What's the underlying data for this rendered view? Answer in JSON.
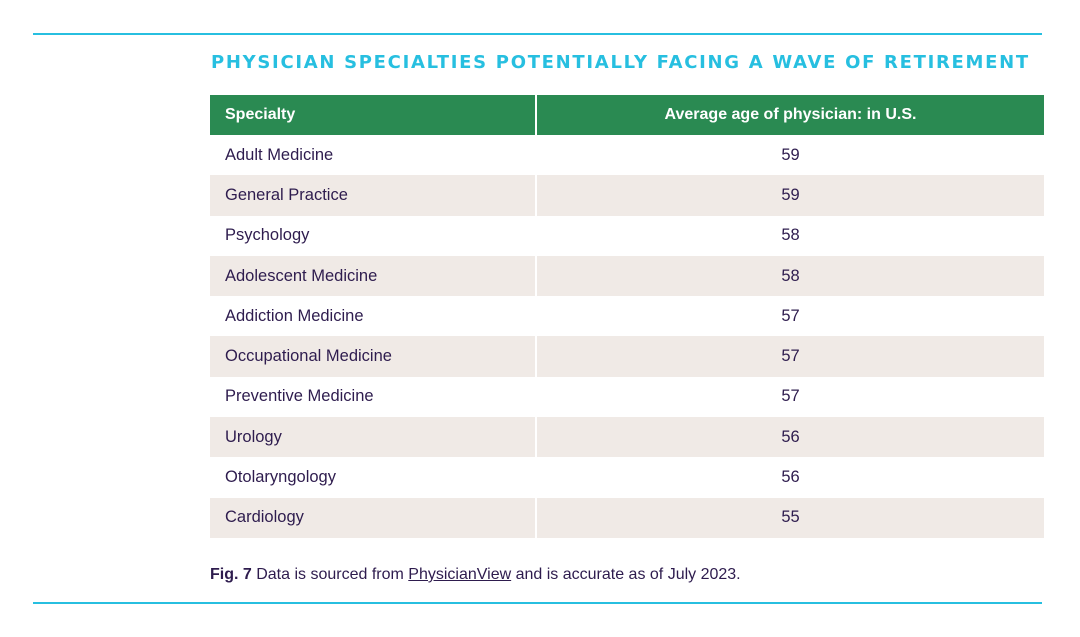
{
  "title": "PHYSICIAN SPECIALTIES POTENTIALLY FACING A WAVE OF RETIREMENT",
  "table": {
    "headers": [
      "Specialty",
      "Average age of physician: in U.S."
    ],
    "rows": [
      {
        "specialty": "Adult Medicine",
        "age": "59"
      },
      {
        "specialty": "General Practice",
        "age": "59"
      },
      {
        "specialty": "Psychology",
        "age": "58"
      },
      {
        "specialty": "Adolescent Medicine",
        "age": "58"
      },
      {
        "specialty": "Addiction Medicine",
        "age": "57"
      },
      {
        "specialty": "Occupational Medicine",
        "age": "57"
      },
      {
        "specialty": "Preventive Medicine",
        "age": "57"
      },
      {
        "specialty": "Urology",
        "age": "56"
      },
      {
        "specialty": "Otolaryngology",
        "age": "56"
      },
      {
        "specialty": "Cardiology",
        "age": "55"
      }
    ]
  },
  "caption": {
    "figure_label": "Fig. 7",
    "text_before": " Data is sourced from ",
    "link_text": "PhysicianView",
    "text_after": " and is accurate as of July 2023."
  },
  "colors": {
    "accent_rule": "#27bfe0",
    "header_bg": "#2a8a52",
    "stripe_bg": "#f0eae6",
    "text": "#2e1c4e"
  }
}
